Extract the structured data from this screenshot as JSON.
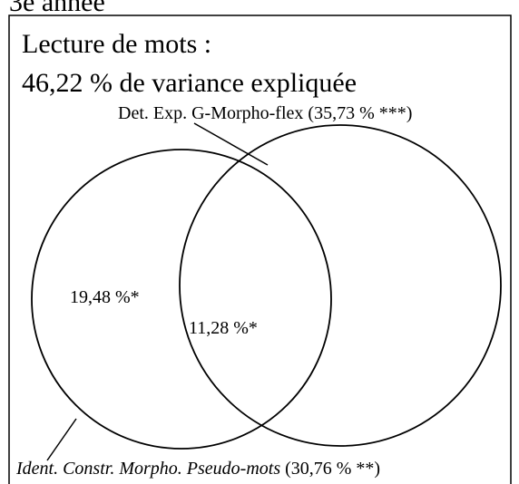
{
  "header": {
    "title": "3e année"
  },
  "panel": {
    "title_lines": [
      "Lecture de mots :",
      "46,22 % de variance expliquée"
    ]
  },
  "circles": [
    {
      "name": "Det. Exp. G-Morpho-flex",
      "value": "(35,73 % ***)"
    },
    {
      "name": "Ident. Constr. Morpho. Pseudo-mots",
      "value": "(30,76 % **)"
    }
  ],
  "regions": [
    {
      "label": "19,48 %*"
    },
    {
      "label": "11,28 %*"
    }
  ]
}
